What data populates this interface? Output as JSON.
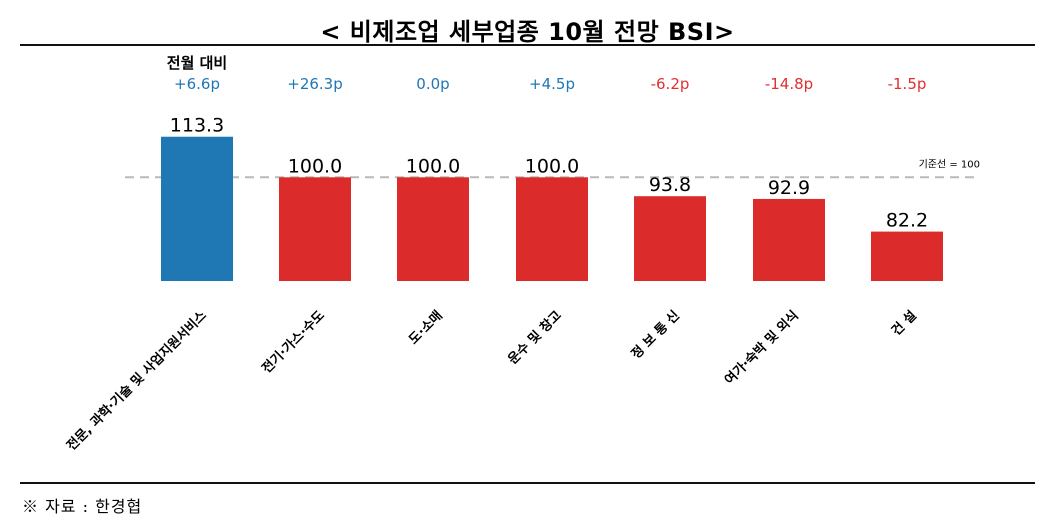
{
  "title": "< 비제조업 세부업종 10월 전망 BSI>",
  "source": "※ 자료 : 한경협",
  "change_header": "전월 대비",
  "baseline_label": "기준선 = 100",
  "colors": {
    "positive": "#1f77b4",
    "negative": "#e03030",
    "bar_blue": "#1f77b4",
    "bar_red": "#dc2b2b",
    "baseline": "#b9b9b9"
  },
  "chart_data": {
    "type": "bar",
    "categories": [
      "전문, 과학·기술 및 사업지원서비스",
      "전기·가스·수도",
      "도·소매",
      "운수 및 창고",
      "정보통신",
      "여가·숙박 및 외식",
      "건설"
    ],
    "category_labels": [
      "전문, 과학·기술 및 사업지원서비스",
      "전기·가스·수도",
      "도·소매",
      "운수 및 창고",
      "정 보 통 신",
      "여가·숙박 및 외식",
      "건 설"
    ],
    "values": [
      113.3,
      100.0,
      100.0,
      100.0,
      93.8,
      92.9,
      82.2
    ],
    "value_labels": [
      "113.3",
      "100.0",
      "100.0",
      "100.0",
      "93.8",
      "92.9",
      "82.2"
    ],
    "changes": [
      "+6.6p",
      "+26.3p",
      "0.0p",
      "+4.5p",
      "-6.2p",
      "-14.8p",
      "-1.5p"
    ],
    "change_direction": [
      "up",
      "up",
      "flat",
      "up",
      "down",
      "down",
      "down"
    ],
    "bar_colors": [
      "blue",
      "red",
      "red",
      "red",
      "red",
      "red",
      "red"
    ],
    "baseline": 100,
    "ylim": [
      66,
      120
    ]
  }
}
